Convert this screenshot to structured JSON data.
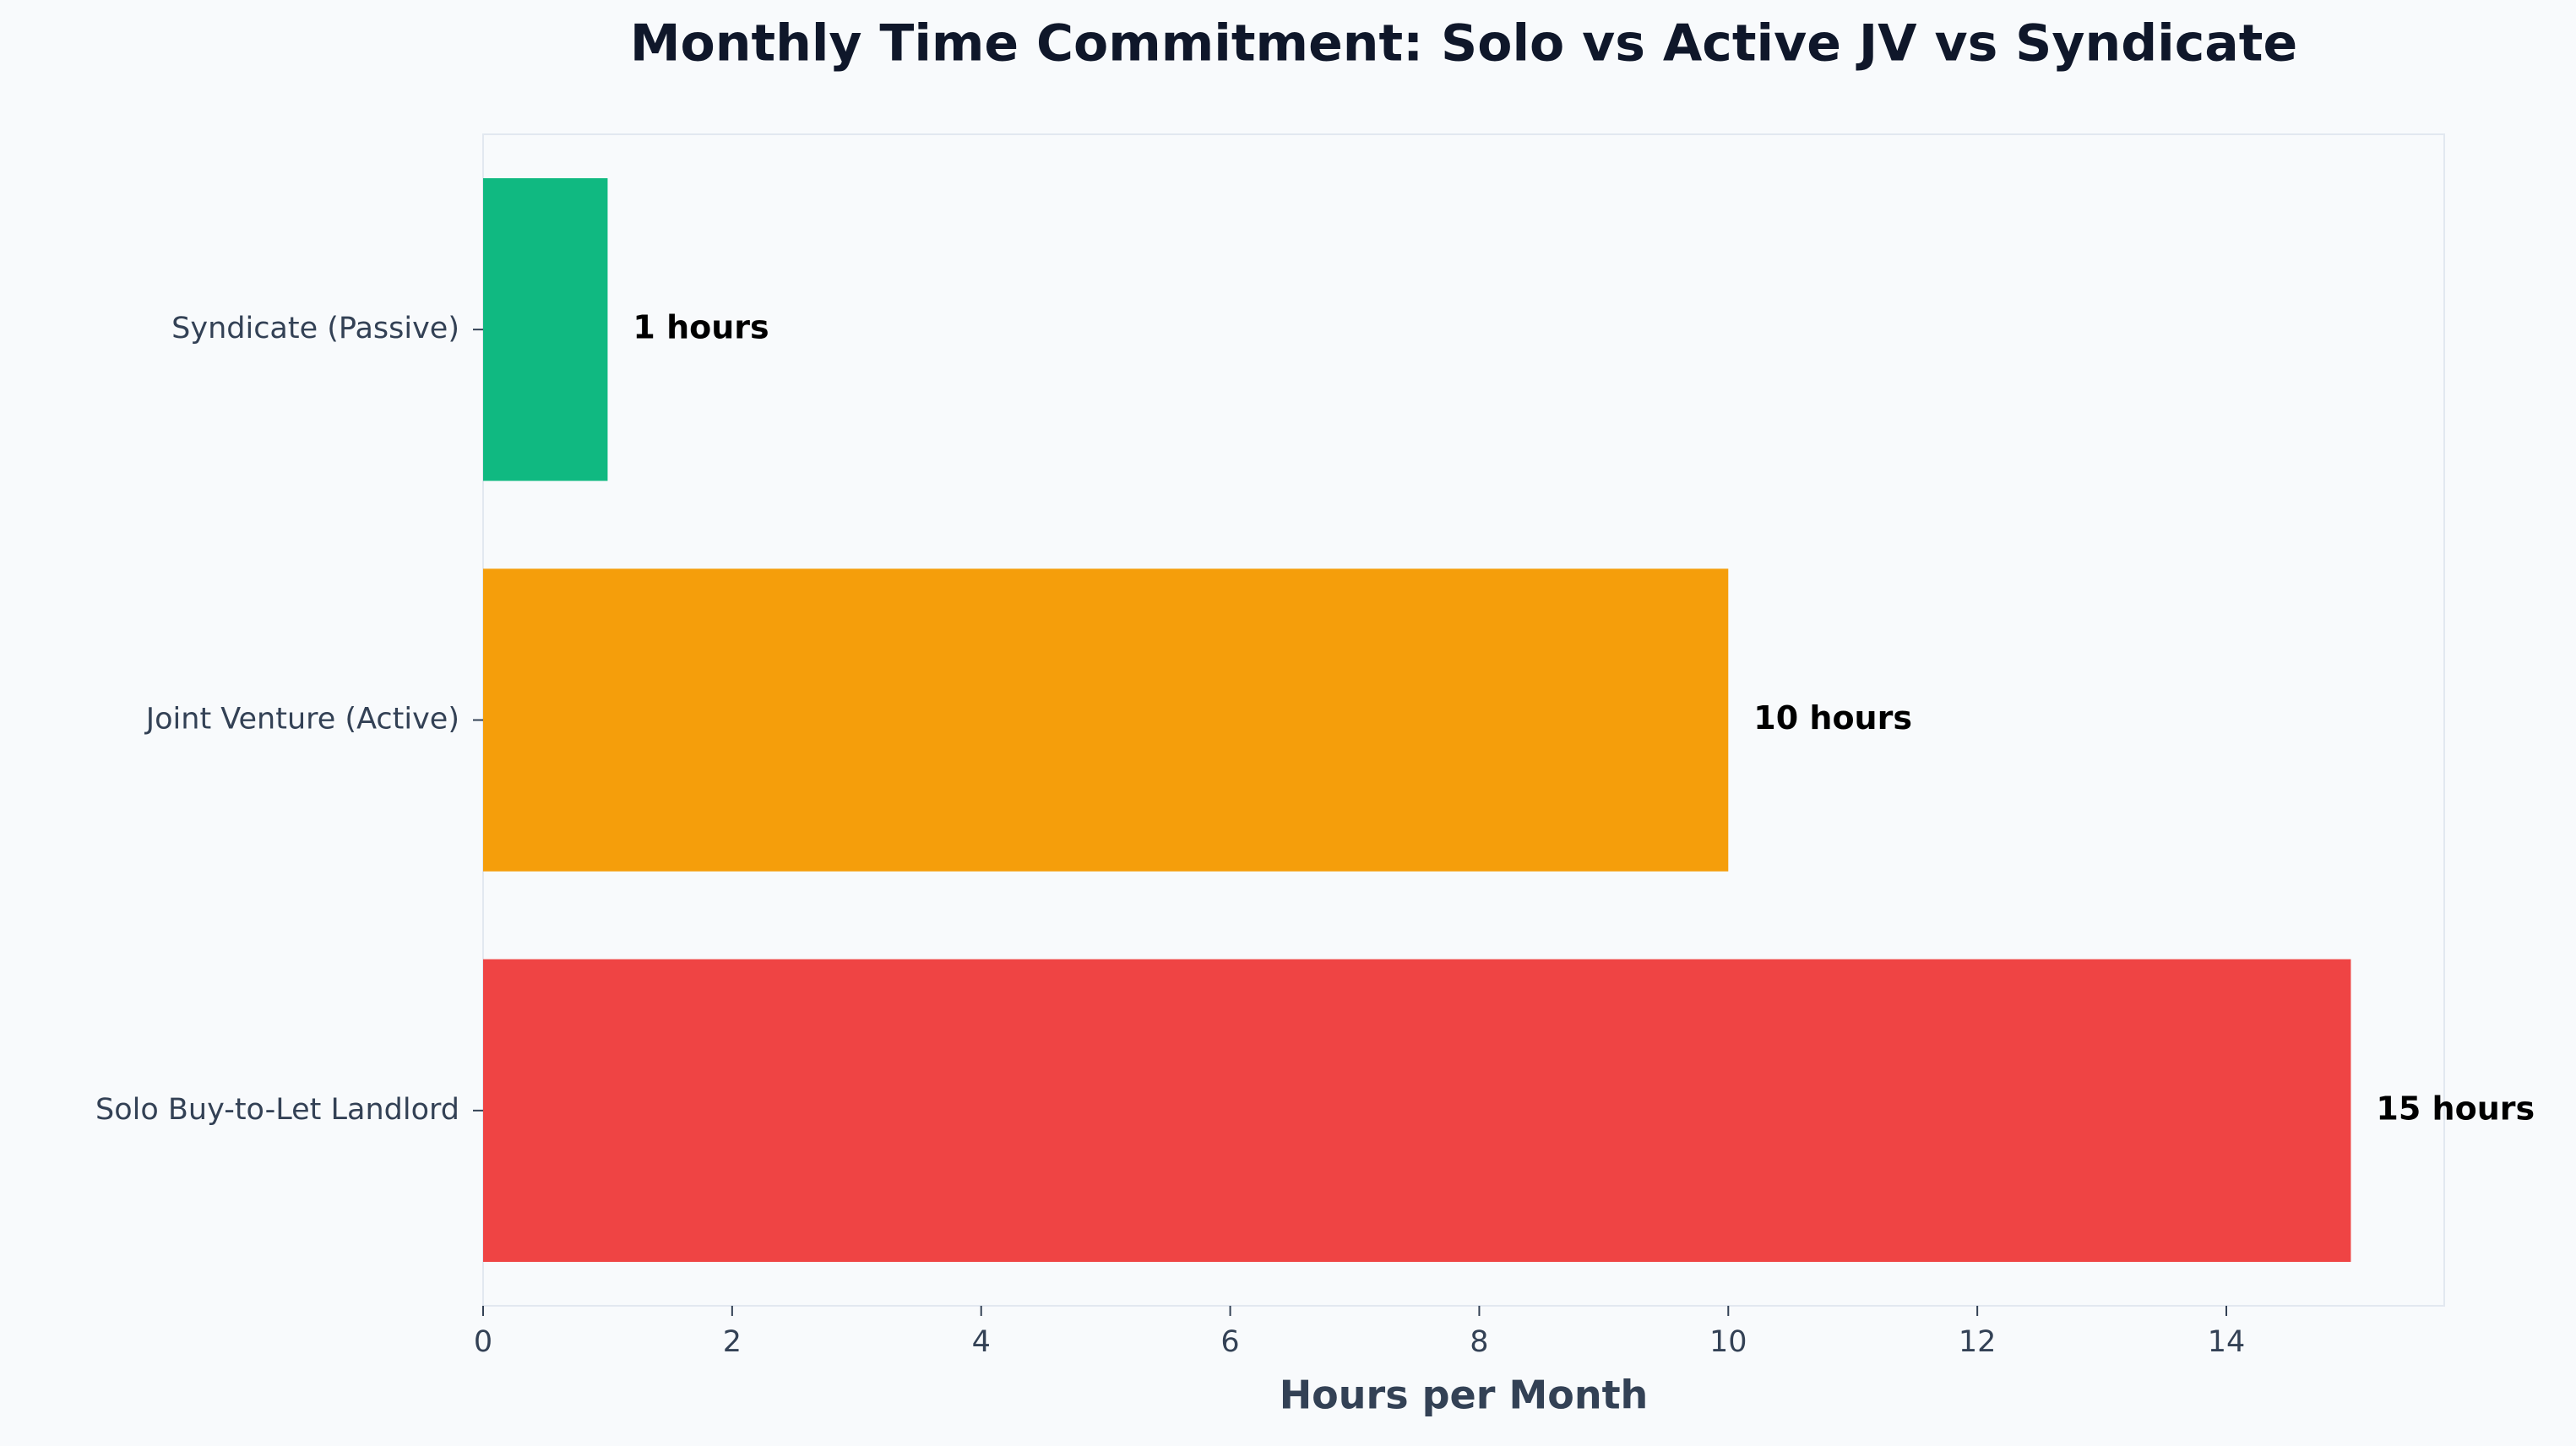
{
  "chart_data": {
    "type": "barh",
    "title": "Monthly Time Commitment: Solo vs Active JV vs Syndicate",
    "x_label": "Hours per Month",
    "categories": [
      "Syndicate (Passive)",
      "Joint Venture (Active)",
      "Solo Buy-to-Let Landlord"
    ],
    "values": [
      1,
      10,
      15
    ],
    "value_labels": [
      "1 hours",
      "10 hours",
      "15 hours"
    ],
    "colors": [
      "#10b981",
      "#f59e0b",
      "#ef4444"
    ],
    "xlim": [
      0,
      15.75
    ],
    "xticks": [
      0,
      2,
      4,
      6,
      8,
      10,
      12,
      14
    ],
    "grid": false
  }
}
